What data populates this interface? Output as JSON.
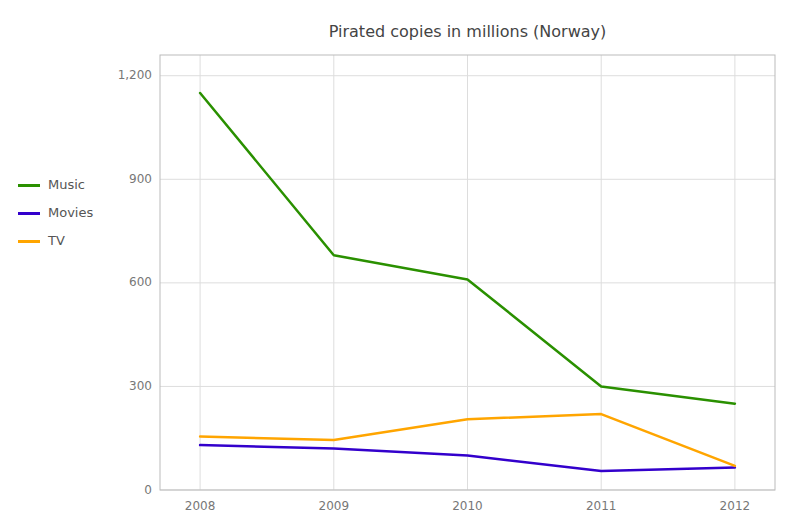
{
  "chart_data": {
    "type": "line",
    "title": "Pirated copies in millions (Norway)",
    "x": [
      2008,
      2009,
      2010,
      2011,
      2012
    ],
    "series": [
      {
        "name": "Music",
        "color": "#2a9000",
        "values": [
          1150,
          680,
          610,
          300,
          250
        ]
      },
      {
        "name": "Movies",
        "color": "#3300cc",
        "values": [
          130,
          120,
          100,
          55,
          65
        ]
      },
      {
        "name": "TV",
        "color": "#ffa500",
        "values": [
          155,
          145,
          205,
          220,
          70
        ]
      }
    ],
    "xlim": [
      2007.7,
      2012.3
    ],
    "xticks": [
      2008,
      2009,
      2010,
      2011,
      2012
    ],
    "ylim": [
      0,
      1260
    ],
    "yticks": [
      0,
      300,
      600,
      900,
      {
        "value": 1200,
        "label": "1,200"
      }
    ],
    "grid": true,
    "legend": "left"
  }
}
